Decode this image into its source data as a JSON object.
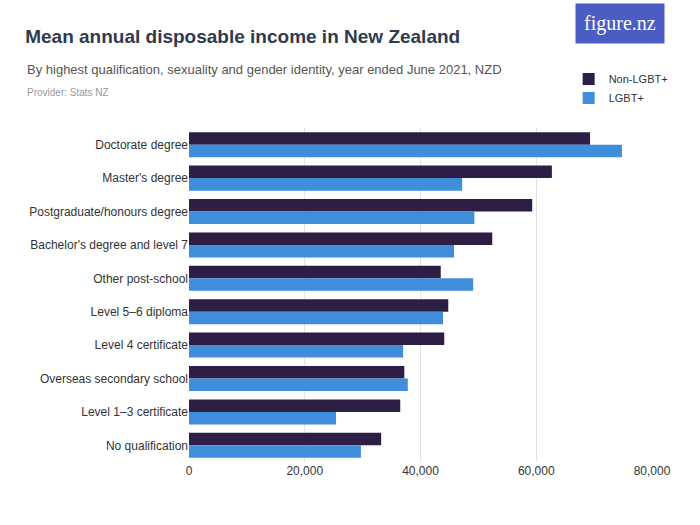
{
  "chart_data": {
    "type": "bar",
    "orientation": "horizontal",
    "title": "Mean annual disposable income in New Zealand",
    "subtitle": "By highest qualification, sexuality and gender identity, year ended June 2021, NZD",
    "annotations": [
      {
        "text": "Provider: Stats NZ"
      },
      {
        "text": "figure.nz"
      }
    ],
    "categories": [
      "Doctorate degree",
      "Master's degree",
      "Postgraduate/honours degree",
      "Bachelor's degree and level 7",
      "Other post-school",
      "Level 5–6 diploma",
      "Level 4 certificate",
      "Overseas secondary school",
      "Level 1–3 certificate",
      "No qualification"
    ],
    "series": [
      {
        "name": "Non-LGBT+",
        "color": "#2d1e45",
        "values": [
          69300,
          62700,
          59300,
          52400,
          43500,
          44800,
          44100,
          37200,
          36500,
          33200
        ]
      },
      {
        "name": "LGBT+",
        "color": "#3f8ddb",
        "values": [
          74800,
          47200,
          49300,
          45800,
          49100,
          43900,
          37000,
          37800,
          25400,
          29700
        ]
      }
    ],
    "xlim": [
      0,
      80000
    ],
    "xticks": [
      0,
      {
        "value": 20000,
        "label": "20,000"
      },
      {
        "value": 40000,
        "label": "40,000"
      },
      {
        "value": 60000,
        "label": "60,000"
      },
      {
        "value": 80000,
        "label": "80,000"
      }
    ],
    "grid": true,
    "legend": "top right"
  }
}
